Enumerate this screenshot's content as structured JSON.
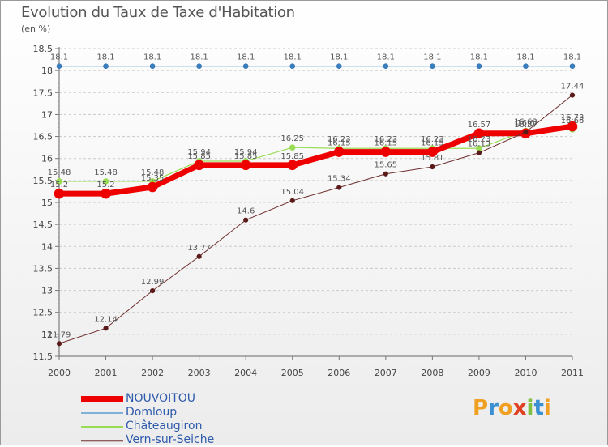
{
  "chart_data": {
    "type": "line",
    "title": "Evolution du Taux de Taxe d'Habitation",
    "subtitle": "(en %)",
    "x": [
      "2000",
      "2001",
      "2002",
      "2003",
      "2004",
      "2005",
      "2006",
      "2007",
      "2008",
      "2009",
      "2010",
      "2011"
    ],
    "ylim": [
      11.5,
      18.5
    ],
    "yticks": [
      11.5,
      12,
      12.5,
      13,
      13.5,
      14,
      14.5,
      15,
      15.5,
      16,
      16.5,
      17,
      17.5,
      18,
      18.5
    ],
    "grid": "horizontal dashed",
    "series": [
      {
        "name": "NOUVOITOU",
        "color": "#ee0000",
        "values": [
          15.2,
          15.2,
          15.35,
          15.85,
          15.85,
          15.85,
          16.15,
          16.15,
          16.15,
          16.57,
          16.57,
          16.73
        ]
      },
      {
        "name": "Domloup",
        "color": "#7fb2d6",
        "values": [
          18.1,
          18.1,
          18.1,
          18.1,
          18.1,
          18.1,
          18.1,
          18.1,
          18.1,
          18.1,
          18.1,
          18.1
        ]
      },
      {
        "name": "Châteaugiron",
        "color": "#99dd55",
        "values": [
          15.48,
          15.48,
          15.48,
          15.94,
          15.94,
          16.25,
          16.23,
          16.23,
          16.23,
          16.23,
          16.63,
          16.66
        ]
      },
      {
        "name": "Vern-sur-Seiche",
        "color": "#6e2e2e",
        "values": [
          11.79,
          12.14,
          12.99,
          13.77,
          14.6,
          15.04,
          15.34,
          15.65,
          15.81,
          16.13,
          16.6,
          17.44
        ]
      }
    ],
    "labels": [
      {
        "series": 0,
        "text": [
          "15.2",
          "15.2",
          "15.35",
          "15.85",
          "15.85",
          "15.85",
          "16.15",
          "16.15",
          "16.15",
          "16.57",
          "16.57",
          "16.73"
        ]
      },
      {
        "series": 1,
        "text": [
          "18.1",
          "18.1",
          "18.1",
          "18.1",
          "18.1",
          "18.1",
          "18.1",
          "18.1",
          "18.1",
          "18.1",
          "18.1",
          "18.1"
        ]
      },
      {
        "series": 2,
        "text": [
          "15.48",
          "15.48",
          "15.48",
          "15.94",
          "15.94",
          "16.25",
          "16.23",
          "16.23",
          "16.23",
          "16.23",
          "16.63",
          "16.66"
        ]
      },
      {
        "series": 3,
        "text": [
          "11.79",
          "12.14",
          "12.99",
          "13.77",
          "14.6",
          "15.04",
          "15.34",
          "15.65",
          "15.81",
          "16.13",
          "16.6",
          "17.44"
        ]
      }
    ]
  },
  "logo": {
    "text": "Proxiti",
    "colors": [
      "#f0a020",
      "#3a90d0",
      "#f0a020",
      "#e04020",
      "#80c040",
      "#3a90d0",
      "#f0a020"
    ]
  }
}
